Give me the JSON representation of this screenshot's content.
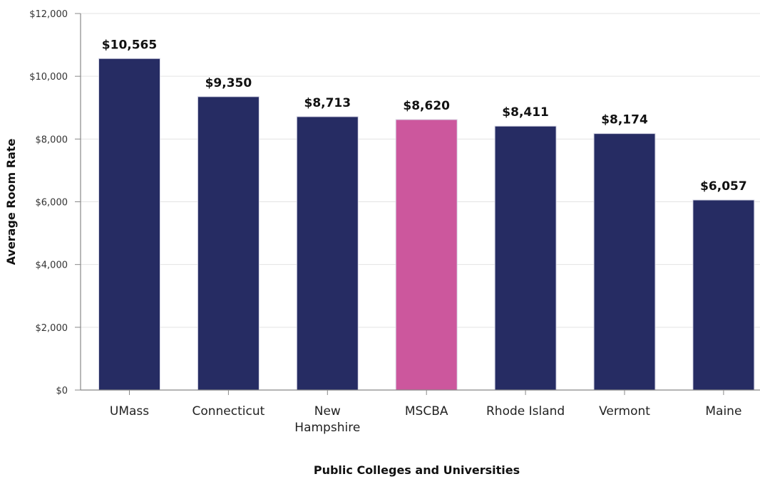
{
  "chart_data": {
    "type": "bar",
    "xlabel": "Public Colleges and Universities",
    "ylabel": "Average Room Rate",
    "ylim": [
      0,
      12000
    ],
    "y_ticks": [
      0,
      2000,
      4000,
      6000,
      8000,
      10000,
      12000
    ],
    "y_tick_labels": [
      "$0",
      "$2,000",
      "$4,000",
      "$6,000",
      "$8,000",
      "$10,000",
      "$12,000"
    ],
    "grid": true,
    "legend": "none",
    "categories": [
      [
        "UMass"
      ],
      [
        "Connecticut"
      ],
      [
        "New",
        "Hampshire"
      ],
      [
        "MSCBA"
      ],
      [
        "Rhode Island"
      ],
      [
        "Vermont"
      ],
      [
        "Maine"
      ]
    ],
    "values": [
      10565,
      9350,
      8713,
      8620,
      8411,
      8174,
      6057
    ],
    "data_labels": [
      "$10,565",
      "$9,350",
      "$8,713",
      "$8,620",
      "$8,411",
      "$8,174",
      "$6,057"
    ],
    "colors": {
      "default_bar": "#262c63",
      "highlight_bar": "#cc579d",
      "highlight_index": 3
    }
  }
}
